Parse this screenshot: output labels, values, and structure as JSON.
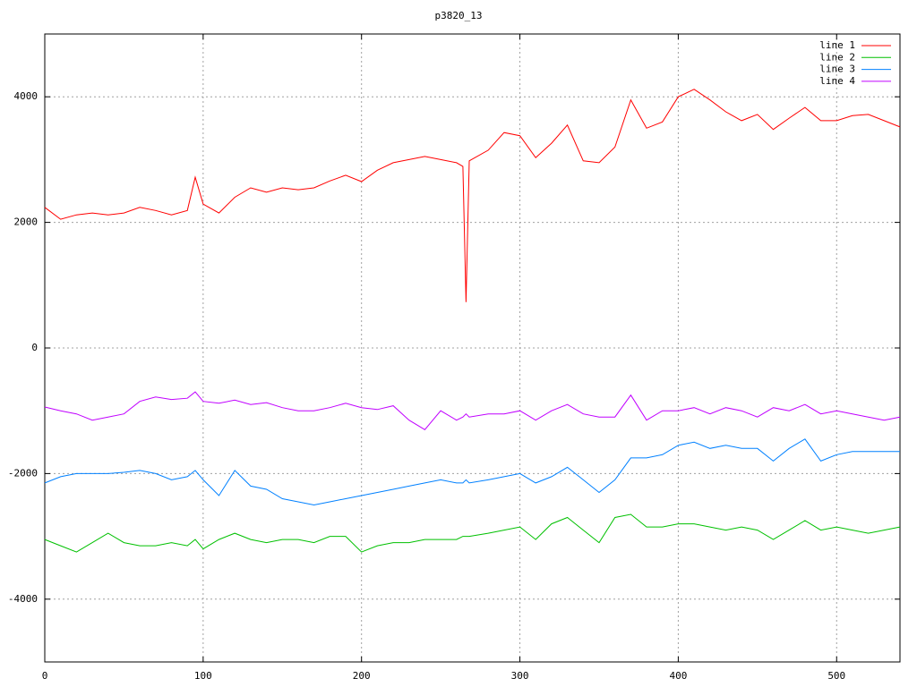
{
  "chart_data": {
    "type": "line",
    "title": "p3820_13",
    "x": [
      0,
      10,
      20,
      30,
      40,
      50,
      60,
      70,
      80,
      90,
      95,
      100,
      110,
      120,
      130,
      140,
      150,
      160,
      170,
      180,
      190,
      200,
      210,
      220,
      230,
      240,
      250,
      260,
      264,
      266,
      268,
      280,
      290,
      300,
      310,
      320,
      330,
      340,
      350,
      360,
      370,
      380,
      390,
      400,
      410,
      420,
      430,
      440,
      450,
      460,
      470,
      480,
      490,
      500,
      510,
      520,
      530,
      540
    ],
    "series": [
      {
        "name": "line 1",
        "color": "#ff0000",
        "values": [
          2240,
          2050,
          2120,
          2150,
          2120,
          2150,
          2240,
          2190,
          2120,
          2190,
          2720,
          2290,
          2150,
          2400,
          2550,
          2480,
          2550,
          2520,
          2550,
          2660,
          2750,
          2650,
          2830,
          2950,
          3000,
          3050,
          3000,
          2950,
          2890,
          730,
          2980,
          3150,
          3430,
          3380,
          3030,
          3260,
          3550,
          2980,
          2950,
          3200,
          3950,
          3500,
          3600,
          4000,
          4120,
          3950,
          3760,
          3620,
          3720,
          3480,
          3660,
          3830,
          3620,
          3620,
          3700,
          3720,
          3620,
          3520
        ]
      },
      {
        "name": "line 2",
        "color": "#00c000",
        "values": [
          -3050,
          -3150,
          -3250,
          -3100,
          -2950,
          -3100,
          -3150,
          -3150,
          -3100,
          -3150,
          -3050,
          -3200,
          -3050,
          -2950,
          -3050,
          -3100,
          -3050,
          -3050,
          -3100,
          -3000,
          -3000,
          -3250,
          -3150,
          -3100,
          -3100,
          -3050,
          -3050,
          -3050,
          -3000,
          -3000,
          -3000,
          -2950,
          -2900,
          -2850,
          -3050,
          -2800,
          -2700,
          -2900,
          -3100,
          -2700,
          -2650,
          -2850,
          -2850,
          -2800,
          -2800,
          -2850,
          -2900,
          -2850,
          -2900,
          -3050,
          -2900,
          -2750,
          -2900,
          -2850,
          -2900,
          -2950,
          -2900,
          -2850
        ]
      },
      {
        "name": "line 3",
        "color": "#0080ff",
        "values": [
          -2150,
          -2050,
          -2000,
          -2000,
          -2000,
          -1980,
          -1950,
          -2000,
          -2100,
          -2050,
          -1950,
          -2100,
          -2350,
          -1950,
          -2200,
          -2250,
          -2400,
          -2450,
          -2500,
          -2450,
          -2400,
          -2350,
          -2300,
          -2250,
          -2200,
          -2150,
          -2100,
          -2150,
          -2150,
          -2100,
          -2150,
          -2100,
          -2050,
          -2000,
          -2150,
          -2050,
          -1900,
          -2100,
          -2300,
          -2100,
          -1750,
          -1750,
          -1700,
          -1550,
          -1500,
          -1600,
          -1550,
          -1600,
          -1600,
          -1800,
          -1600,
          -1450,
          -1800,
          -1700,
          -1650,
          -1650,
          -1650,
          -1650
        ]
      },
      {
        "name": "line 4",
        "color": "#c000ff",
        "values": [
          -940,
          -1000,
          -1050,
          -1150,
          -1100,
          -1050,
          -850,
          -780,
          -820,
          -800,
          -700,
          -850,
          -880,
          -830,
          -900,
          -870,
          -950,
          -1000,
          -1000,
          -950,
          -880,
          -950,
          -980,
          -920,
          -1150,
          -1300,
          -1000,
          -1150,
          -1100,
          -1050,
          -1100,
          -1050,
          -1050,
          -1000,
          -1150,
          -1000,
          -900,
          -1050,
          -1100,
          -1100,
          -750,
          -1150,
          -1000,
          -1000,
          -950,
          -1050,
          -950,
          -1000,
          -1100,
          -950,
          -1000,
          -900,
          -1050,
          -1000,
          -1050,
          -1100,
          -1150,
          -1100
        ]
      }
    ],
    "xlim": [
      0,
      540
    ],
    "xticks": [
      0,
      100,
      200,
      300,
      400,
      500
    ],
    "ylim": [
      -5000,
      5000
    ],
    "yticks": [
      -4000,
      -2000,
      0,
      2000,
      4000
    ],
    "grid": true,
    "legend": "top-right"
  }
}
